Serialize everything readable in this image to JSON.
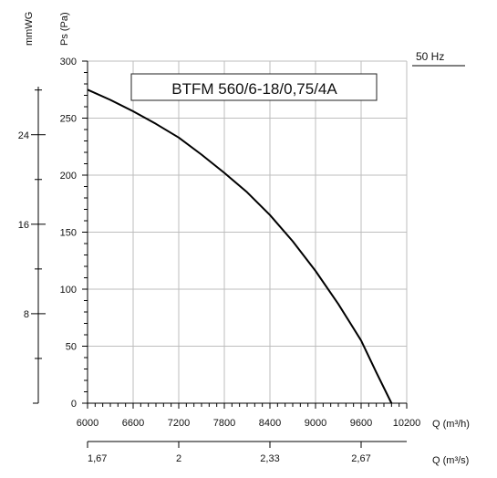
{
  "chart_data": {
    "type": "line",
    "title": "BTFM 560/6-18/0,75/4A",
    "frequency_label": "50 Hz",
    "xlabel": "Q (m³/h)",
    "x2label": "Q (m³/s)",
    "ylabel": "Ps (Pa)",
    "y2label": "mmWG",
    "xlim": [
      6000,
      10200
    ],
    "ylim": [
      0,
      300
    ],
    "x_ticks": [
      "6000",
      "6600",
      "7200",
      "7800",
      "8400",
      "9000",
      "9600",
      "10200"
    ],
    "y_ticks": [
      "0",
      "50",
      "100",
      "150",
      "200",
      "250",
      "300"
    ],
    "x2_ticks": [
      {
        "label": "1,67",
        "q": 6000
      },
      {
        "label": "2",
        "q": 7200
      },
      {
        "label": "2,33",
        "q": 8400
      },
      {
        "label": "2,67",
        "q": 9600
      }
    ],
    "y2_ticks": [
      {
        "label": "8",
        "pa": 78.5
      },
      {
        "label": "16",
        "pa": 157
      },
      {
        "label": "24",
        "pa": 235.4
      }
    ],
    "grid": true,
    "series": [
      {
        "color": "#000000",
        "x": [
          6000,
          6300,
          6600,
          6900,
          7200,
          7500,
          7800,
          8100,
          8400,
          8700,
          9000,
          9300,
          9600,
          9800,
          10000
        ],
        "y": [
          275,
          266,
          256,
          245,
          233,
          218,
          202,
          185,
          165,
          142,
          116,
          87,
          55,
          27,
          0
        ]
      }
    ]
  }
}
